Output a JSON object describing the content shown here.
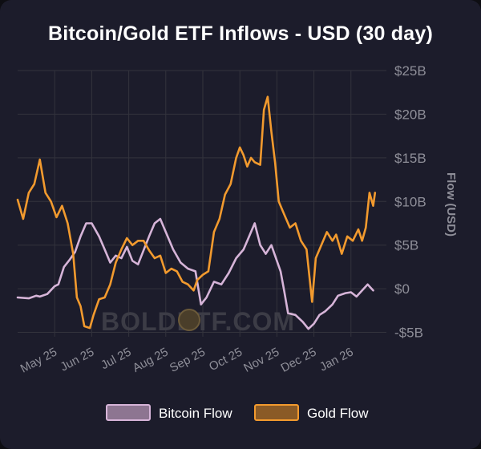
{
  "title": "Bitcoin/Gold ETF Inflows - USD (30 day)",
  "watermark": "BOLDETF.COM",
  "colors": {
    "background": "#1c1c2b",
    "grid": "#33333d",
    "bitcoin": "#d6b4d8",
    "gold": "#f29a2e",
    "text": "#ffffff",
    "axis_text": "#8e8e98"
  },
  "chart_data": {
    "type": "line",
    "title": "Bitcoin/Gold ETF Inflows - USD (30 day)",
    "ylabel": "Flow (USD)",
    "ylim": [
      -5.5,
      25
    ],
    "yticks": [
      {
        "value": 25,
        "label": "$25B"
      },
      {
        "value": 20,
        "label": "$20B"
      },
      {
        "value": 15,
        "label": "$15B"
      },
      {
        "value": 10,
        "label": "$10B"
      },
      {
        "value": 5,
        "label": "$5B"
      },
      {
        "value": 0,
        "label": "$0"
      },
      {
        "value": -5,
        "label": "-$5B"
      }
    ],
    "xrange": [
      0,
      9.65
    ],
    "xticks": [
      {
        "value": 1,
        "label": "May 25"
      },
      {
        "value": 2,
        "label": "Jun 25"
      },
      {
        "value": 3,
        "label": "Jul 25"
      },
      {
        "value": 4,
        "label": "Aug 25"
      },
      {
        "value": 5,
        "label": "Sep 25"
      },
      {
        "value": 6,
        "label": "Oct 25"
      },
      {
        "value": 7,
        "label": "Nov 25"
      },
      {
        "value": 8,
        "label": "Dec 25"
      },
      {
        "value": 9,
        "label": "Jan 26"
      }
    ],
    "grid": true,
    "legend_position": "bottom",
    "series": [
      {
        "name": "Bitcoin Flow",
        "color": "#d6b4d8",
        "points": [
          [
            0.0,
            -1.0
          ],
          [
            0.3,
            -1.1
          ],
          [
            0.5,
            -0.8
          ],
          [
            0.6,
            -0.9
          ],
          [
            0.8,
            -0.6
          ],
          [
            1.0,
            0.3
          ],
          [
            1.1,
            0.5
          ],
          [
            1.25,
            2.5
          ],
          [
            1.4,
            3.3
          ],
          [
            1.55,
            4.2
          ],
          [
            1.7,
            6.0
          ],
          [
            1.85,
            7.5
          ],
          [
            2.0,
            7.5
          ],
          [
            2.2,
            6.0
          ],
          [
            2.35,
            4.5
          ],
          [
            2.5,
            3.0
          ],
          [
            2.65,
            3.8
          ],
          [
            2.8,
            3.5
          ],
          [
            2.95,
            4.8
          ],
          [
            3.1,
            3.2
          ],
          [
            3.25,
            2.8
          ],
          [
            3.4,
            4.4
          ],
          [
            3.55,
            6.0
          ],
          [
            3.7,
            7.5
          ],
          [
            3.85,
            8.0
          ],
          [
            4.0,
            6.5
          ],
          [
            4.2,
            4.5
          ],
          [
            4.4,
            3.0
          ],
          [
            4.6,
            2.3
          ],
          [
            4.8,
            2.0
          ],
          [
            4.95,
            -1.8
          ],
          [
            5.1,
            -1.0
          ],
          [
            5.3,
            0.8
          ],
          [
            5.5,
            0.5
          ],
          [
            5.7,
            1.8
          ],
          [
            5.9,
            3.5
          ],
          [
            6.1,
            4.5
          ],
          [
            6.25,
            6.0
          ],
          [
            6.4,
            7.5
          ],
          [
            6.55,
            5.0
          ],
          [
            6.7,
            4.0
          ],
          [
            6.85,
            5.0
          ],
          [
            6.95,
            3.8
          ],
          [
            7.1,
            2.0
          ],
          [
            7.2,
            -0.3
          ],
          [
            7.3,
            -2.8
          ],
          [
            7.5,
            -3.0
          ],
          [
            7.7,
            -3.8
          ],
          [
            7.85,
            -4.6
          ],
          [
            8.0,
            -4.0
          ],
          [
            8.15,
            -3.0
          ],
          [
            8.3,
            -2.6
          ],
          [
            8.5,
            -1.8
          ],
          [
            8.65,
            -0.8
          ],
          [
            8.85,
            -0.5
          ],
          [
            9.0,
            -0.4
          ],
          [
            9.15,
            -0.9
          ],
          [
            9.3,
            -0.2
          ],
          [
            9.45,
            0.5
          ],
          [
            9.6,
            -0.2
          ]
        ]
      },
      {
        "name": "Gold Flow",
        "color": "#f29a2e",
        "points": [
          [
            0.0,
            10.2
          ],
          [
            0.15,
            8.0
          ],
          [
            0.3,
            11.0
          ],
          [
            0.45,
            12.0
          ],
          [
            0.6,
            14.8
          ],
          [
            0.75,
            11.0
          ],
          [
            0.9,
            10.0
          ],
          [
            1.05,
            8.2
          ],
          [
            1.2,
            9.5
          ],
          [
            1.35,
            7.5
          ],
          [
            1.5,
            4.0
          ],
          [
            1.6,
            -1.0
          ],
          [
            1.7,
            -2.0
          ],
          [
            1.8,
            -4.3
          ],
          [
            1.95,
            -4.5
          ],
          [
            2.05,
            -3.0
          ],
          [
            2.2,
            -1.2
          ],
          [
            2.35,
            -1.0
          ],
          [
            2.5,
            0.5
          ],
          [
            2.65,
            3.0
          ],
          [
            2.8,
            4.5
          ],
          [
            2.95,
            5.8
          ],
          [
            3.1,
            5.0
          ],
          [
            3.25,
            5.5
          ],
          [
            3.4,
            5.5
          ],
          [
            3.55,
            4.4
          ],
          [
            3.7,
            3.5
          ],
          [
            3.85,
            3.8
          ],
          [
            4.0,
            1.8
          ],
          [
            4.15,
            2.3
          ],
          [
            4.3,
            2.0
          ],
          [
            4.45,
            0.8
          ],
          [
            4.6,
            0.5
          ],
          [
            4.75,
            -0.2
          ],
          [
            4.85,
            1.0
          ],
          [
            5.0,
            1.6
          ],
          [
            5.15,
            2.0
          ],
          [
            5.3,
            6.5
          ],
          [
            5.45,
            8.0
          ],
          [
            5.6,
            10.8
          ],
          [
            5.75,
            12.0
          ],
          [
            5.9,
            15.0
          ],
          [
            6.0,
            16.2
          ],
          [
            6.1,
            15.3
          ],
          [
            6.2,
            14.0
          ],
          [
            6.3,
            15.0
          ],
          [
            6.4,
            14.5
          ],
          [
            6.55,
            14.2
          ],
          [
            6.65,
            20.5
          ],
          [
            6.75,
            22.0
          ],
          [
            6.85,
            18.0
          ],
          [
            6.95,
            14.5
          ],
          [
            7.05,
            10.0
          ],
          [
            7.2,
            8.5
          ],
          [
            7.35,
            7.0
          ],
          [
            7.5,
            7.5
          ],
          [
            7.65,
            5.5
          ],
          [
            7.8,
            4.5
          ],
          [
            7.95,
            -1.5
          ],
          [
            8.05,
            3.5
          ],
          [
            8.2,
            5.0
          ],
          [
            8.35,
            6.5
          ],
          [
            8.5,
            5.5
          ],
          [
            8.6,
            6.2
          ],
          [
            8.75,
            4.0
          ],
          [
            8.9,
            6.0
          ],
          [
            9.05,
            5.5
          ],
          [
            9.2,
            6.8
          ],
          [
            9.3,
            5.5
          ],
          [
            9.4,
            7.0
          ],
          [
            9.5,
            11.0
          ],
          [
            9.6,
            9.5
          ],
          [
            9.65,
            11.0
          ]
        ]
      }
    ]
  }
}
